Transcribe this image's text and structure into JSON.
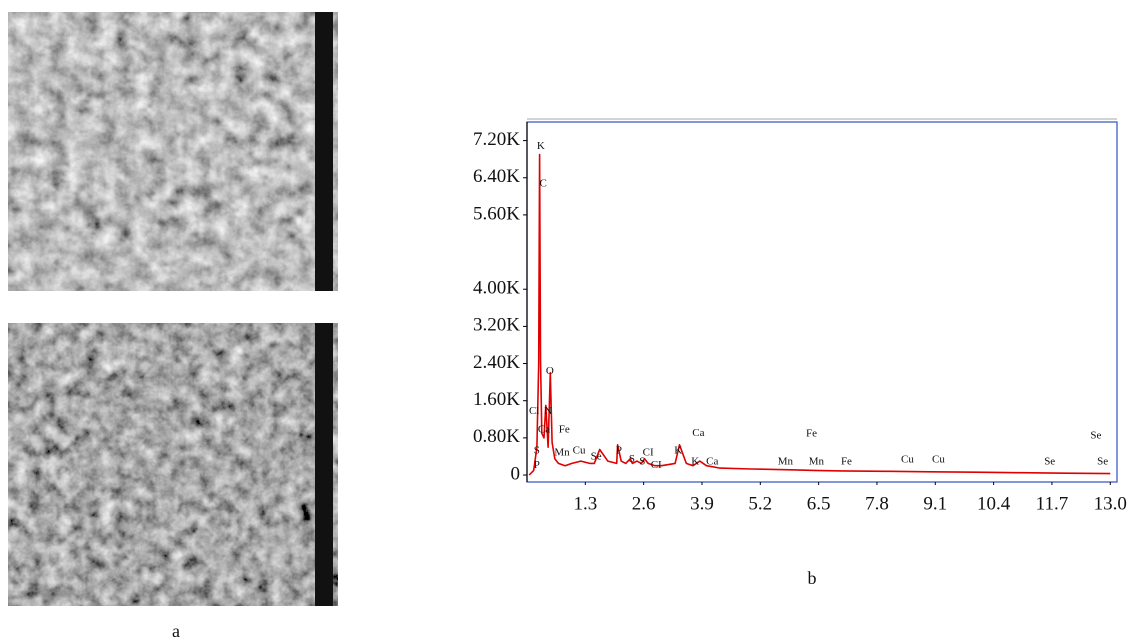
{
  "captions": {
    "a": "a",
    "b": "b"
  },
  "chart_data": {
    "type": "line",
    "color": "#e00000",
    "x": [
      0.05,
      0.15,
      0.22,
      0.26,
      0.28,
      0.3,
      0.33,
      0.38,
      0.42,
      0.47,
      0.52,
      0.56,
      0.62,
      0.7,
      0.85,
      1.0,
      1.2,
      1.4,
      1.5,
      1.62,
      1.8,
      2.0,
      2.02,
      2.1,
      2.2,
      2.3,
      2.35,
      2.45,
      2.55,
      2.62,
      2.7,
      2.85,
      3.0,
      3.3,
      3.4,
      3.55,
      3.7,
      3.85,
      4.0,
      4.3,
      5.0,
      6.0,
      6.4,
      7.0,
      8.0,
      9.0,
      10.0,
      11.0,
      12.0,
      13.0
    ],
    "values": [
      0,
      100,
      600,
      2400,
      6900,
      2500,
      900,
      800,
      1500,
      600,
      2200,
      700,
      350,
      250,
      200,
      250,
      300,
      250,
      250,
      550,
      300,
      250,
      650,
      300,
      250,
      350,
      250,
      300,
      250,
      350,
      250,
      200,
      200,
      250,
      650,
      250,
      200,
      300,
      200,
      150,
      130,
      110,
      100,
      90,
      80,
      70,
      60,
      50,
      40,
      30
    ],
    "xlim": [
      0,
      13.15
    ],
    "ylim": [
      -150,
      7600
    ],
    "xticks": [
      1.3,
      2.6,
      3.9,
      5.2,
      6.5,
      7.8,
      9.1,
      10.4,
      11.7,
      {
        "value": 13,
        "label": "13.0"
      }
    ],
    "yticks": [
      {
        "value": 0,
        "label": "0"
      },
      {
        "value": 800,
        "label": "0.80K"
      },
      {
        "value": 1600,
        "label": "1.60K"
      },
      {
        "value": 2400,
        "label": "2.40K"
      },
      {
        "value": 3200,
        "label": "3.20K"
      },
      {
        "value": 4000,
        "label": "4.00K"
      },
      {
        "value": 5600,
        "label": "5.60K"
      },
      {
        "value": 6400,
        "label": "6.40K"
      },
      {
        "value": 7200,
        "label": "7.20K"
      }
    ],
    "annotations": [
      {
        "text": "K",
        "x": 0.31,
        "y": 7070
      },
      {
        "text": "C",
        "x": 0.36,
        "y": 6270
      },
      {
        "text": "O",
        "x": 0.51,
        "y": 2230
      },
      {
        "text": "Cl",
        "x": 0.16,
        "y": 1370
      },
      {
        "text": "N",
        "x": 0.47,
        "y": 1370
      },
      {
        "text": "Ca",
        "x": 0.38,
        "y": 970
      },
      {
        "text": "Fe",
        "x": 0.83,
        "y": 970
      },
      {
        "text": "S",
        "x": 0.22,
        "y": 520
      },
      {
        "text": "Mn",
        "x": 0.78,
        "y": 470
      },
      {
        "text": "Cu",
        "x": 1.16,
        "y": 520
      },
      {
        "text": "Se",
        "x": 1.54,
        "y": 390
      },
      {
        "text": "P",
        "x": 0.22,
        "y": 210
      },
      {
        "text": "P",
        "x": 2.05,
        "y": 520
      },
      {
        "text": "S",
        "x": 2.34,
        "y": 340
      },
      {
        "text": "S",
        "x": 2.57,
        "y": 280
      },
      {
        "text": "CI",
        "x": 2.7,
        "y": 470
      },
      {
        "text": "CI",
        "x": 2.88,
        "y": 210
      },
      {
        "text": "K",
        "x": 3.37,
        "y": 520
      },
      {
        "text": "Ca",
        "x": 3.82,
        "y": 900
      },
      {
        "text": "K",
        "x": 3.75,
        "y": 280
      },
      {
        "text": "Ca",
        "x": 4.13,
        "y": 280
      },
      {
        "text": "Mn",
        "x": 5.76,
        "y": 280
      },
      {
        "text": "Mn",
        "x": 6.45,
        "y": 280
      },
      {
        "text": "Fe",
        "x": 6.34,
        "y": 880
      },
      {
        "text": "Fe",
        "x": 7.12,
        "y": 280
      },
      {
        "text": "Cu",
        "x": 8.48,
        "y": 320
      },
      {
        "text": "Cu",
        "x": 9.17,
        "y": 320
      },
      {
        "text": "Se",
        "x": 11.65,
        "y": 280
      },
      {
        "text": "Se",
        "x": 12.68,
        "y": 840
      },
      {
        "text": "Se",
        "x": 12.83,
        "y": 280
      }
    ]
  }
}
